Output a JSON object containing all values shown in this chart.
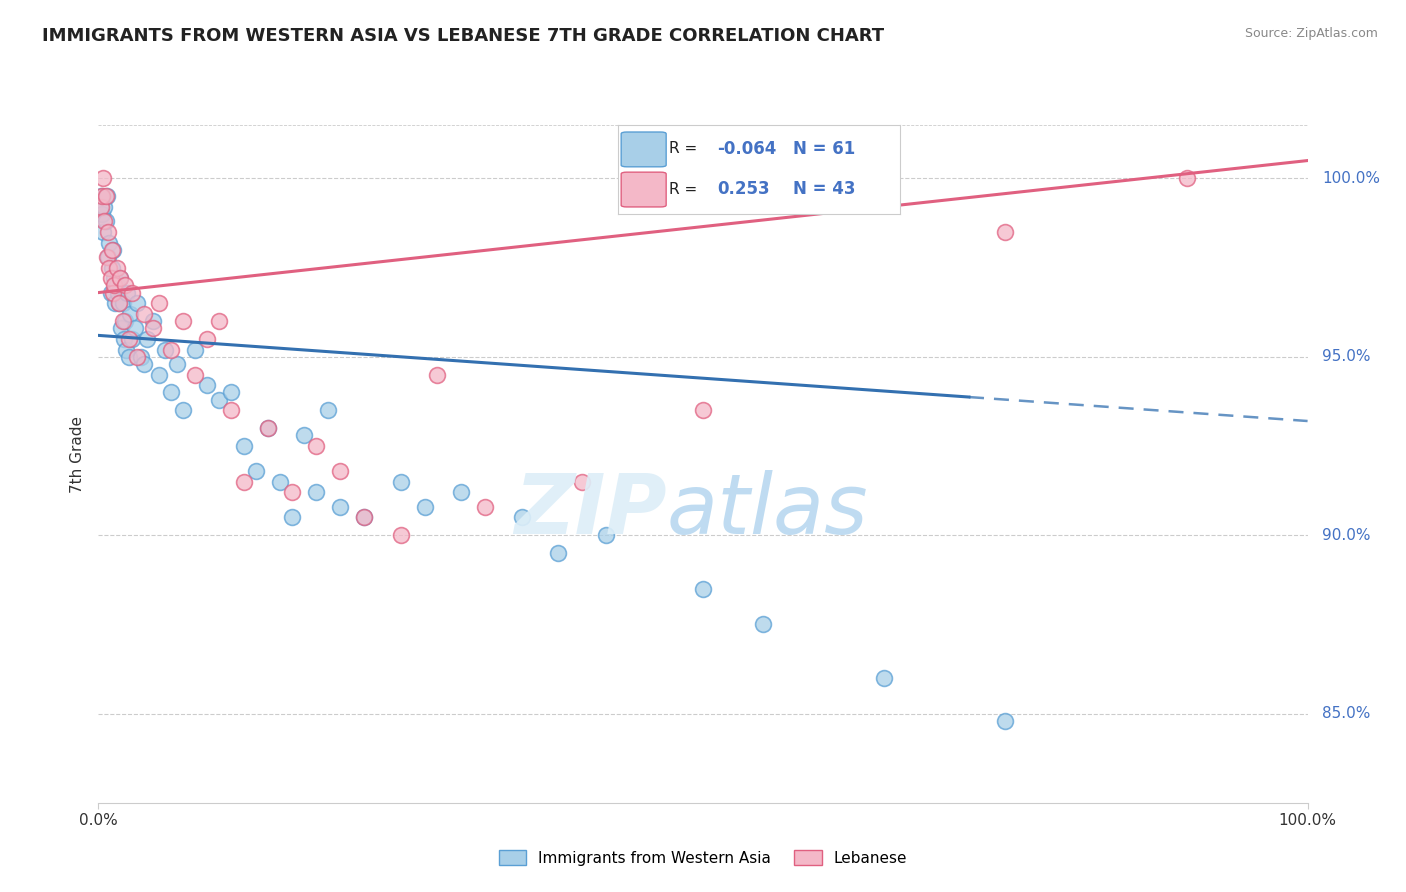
{
  "title": "IMMIGRANTS FROM WESTERN ASIA VS LEBANESE 7TH GRADE CORRELATION CHART",
  "source": "Source: ZipAtlas.com",
  "blue_label": "Immigrants from Western Asia",
  "pink_label": "Lebanese",
  "blue_R": -0.064,
  "blue_N": 61,
  "pink_R": 0.253,
  "pink_N": 43,
  "blue_color": "#a8cfe8",
  "pink_color": "#f4b8c8",
  "blue_edge_color": "#5a9fd4",
  "pink_edge_color": "#e06080",
  "blue_line_color": "#3370b0",
  "pink_line_color": "#e06080",
  "xmin": 0.0,
  "xmax": 100.0,
  "ymin": 82.5,
  "ymax": 102.0,
  "yticks": [
    85.0,
    90.0,
    95.0,
    100.0
  ],
  "blue_trend_x0": 0.0,
  "blue_trend_y0": 95.6,
  "blue_trend_x1": 100.0,
  "blue_trend_y1": 93.2,
  "blue_solid_end": 72.0,
  "pink_trend_x0": 0.0,
  "pink_trend_y0": 96.8,
  "pink_trend_x1": 100.0,
  "pink_trend_y1": 100.5,
  "blue_scatter_x": [
    0.2,
    0.3,
    0.4,
    0.5,
    0.6,
    0.7,
    0.8,
    0.9,
    1.0,
    1.1,
    1.2,
    1.3,
    1.4,
    1.5,
    1.6,
    1.7,
    1.8,
    1.9,
    2.0,
    2.1,
    2.2,
    2.3,
    2.4,
    2.5,
    2.6,
    2.8,
    3.0,
    3.2,
    3.5,
    3.8,
    4.0,
    4.5,
    5.0,
    5.5,
    6.0,
    6.5,
    7.0,
    8.0,
    9.0,
    10.0,
    11.0,
    12.0,
    13.0,
    14.0,
    15.0,
    16.0,
    17.0,
    18.0,
    19.0,
    20.0,
    22.0,
    25.0,
    27.0,
    30.0,
    35.0,
    38.0,
    42.0,
    50.0,
    55.0,
    65.0,
    75.0
  ],
  "blue_scatter_y": [
    99.5,
    99.0,
    98.5,
    99.2,
    98.8,
    99.5,
    97.8,
    98.2,
    96.8,
    97.5,
    98.0,
    97.2,
    96.5,
    97.0,
    96.8,
    96.5,
    97.2,
    95.8,
    96.5,
    95.5,
    96.0,
    95.2,
    96.8,
    95.0,
    96.2,
    95.5,
    95.8,
    96.5,
    95.0,
    94.8,
    95.5,
    96.0,
    94.5,
    95.2,
    94.0,
    94.8,
    93.5,
    95.2,
    94.2,
    93.8,
    94.0,
    92.5,
    91.8,
    93.0,
    91.5,
    90.5,
    92.8,
    91.2,
    93.5,
    90.8,
    90.5,
    91.5,
    90.8,
    91.2,
    90.5,
    89.5,
    90.0,
    88.5,
    87.5,
    86.0,
    84.8
  ],
  "pink_scatter_x": [
    0.2,
    0.3,
    0.4,
    0.5,
    0.6,
    0.7,
    0.8,
    0.9,
    1.0,
    1.1,
    1.2,
    1.3,
    1.5,
    1.7,
    1.8,
    2.0,
    2.2,
    2.5,
    2.8,
    3.2,
    3.8,
    4.5,
    5.0,
    6.0,
    7.0,
    8.0,
    9.0,
    10.0,
    11.0,
    12.0,
    14.0,
    16.0,
    18.0,
    20.0,
    22.0,
    25.0,
    28.0,
    32.0,
    40.0,
    50.0,
    62.0,
    75.0,
    90.0
  ],
  "pink_scatter_y": [
    99.2,
    99.5,
    100.0,
    98.8,
    99.5,
    97.8,
    98.5,
    97.5,
    97.2,
    98.0,
    96.8,
    97.0,
    97.5,
    96.5,
    97.2,
    96.0,
    97.0,
    95.5,
    96.8,
    95.0,
    96.2,
    95.8,
    96.5,
    95.2,
    96.0,
    94.5,
    95.5,
    96.0,
    93.5,
    91.5,
    93.0,
    91.2,
    92.5,
    91.8,
    90.5,
    90.0,
    94.5,
    90.8,
    91.5,
    93.5,
    100.0,
    98.5,
    100.0
  ]
}
